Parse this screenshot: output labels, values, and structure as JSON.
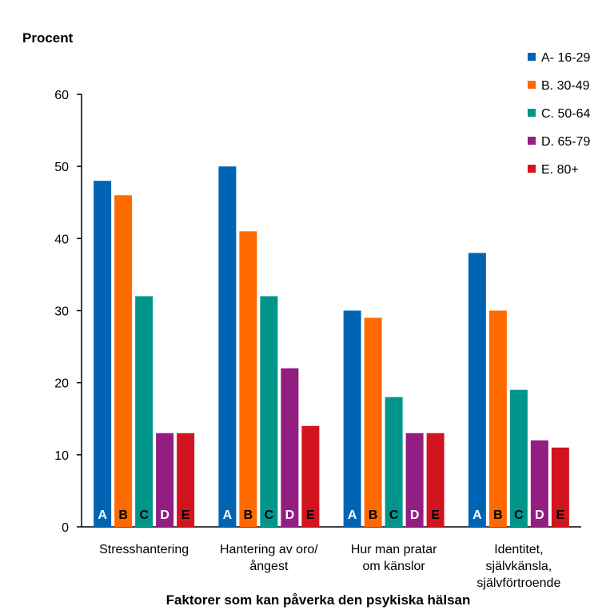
{
  "chart_data": {
    "type": "bar",
    "title": "",
    "ylabel": "Procent",
    "xlabel": "Faktorer som kan påverka den psykiska hälsan",
    "ylim": [
      0,
      60
    ],
    "yticks": [
      0,
      10,
      20,
      30,
      40,
      50,
      60
    ],
    "categories": [
      [
        "Stresshantering"
      ],
      [
        "Hantering av oro/",
        "ångest"
      ],
      [
        "Hur man pratar",
        "om känslor"
      ],
      [
        "Identitet,",
        "självkänsla,",
        "självförtroende"
      ]
    ],
    "series": [
      {
        "name": "A- 16-29",
        "short": "A",
        "color": "#0064B4",
        "label_color": "#ffffff",
        "values": [
          48,
          50,
          30,
          38
        ]
      },
      {
        "name": "B. 30-49",
        "short": "B",
        "color": "#FF6A00",
        "label_color": "#000000",
        "values": [
          46,
          41,
          29,
          30
        ]
      },
      {
        "name": "C. 50-64",
        "short": "C",
        "color": "#00968C",
        "label_color": "#000000",
        "values": [
          32,
          32,
          18,
          19
        ]
      },
      {
        "name": "D. 65-79",
        "short": "D",
        "color": "#921E82",
        "label_color": "#ffffff",
        "values": [
          13,
          22,
          13,
          12
        ]
      },
      {
        "name": "E. 80+",
        "short": "E",
        "color": "#D2141E",
        "label_color": "#000000",
        "values": [
          13,
          14,
          13,
          11
        ]
      }
    ],
    "legend_position": "top-right",
    "grid": false
  }
}
